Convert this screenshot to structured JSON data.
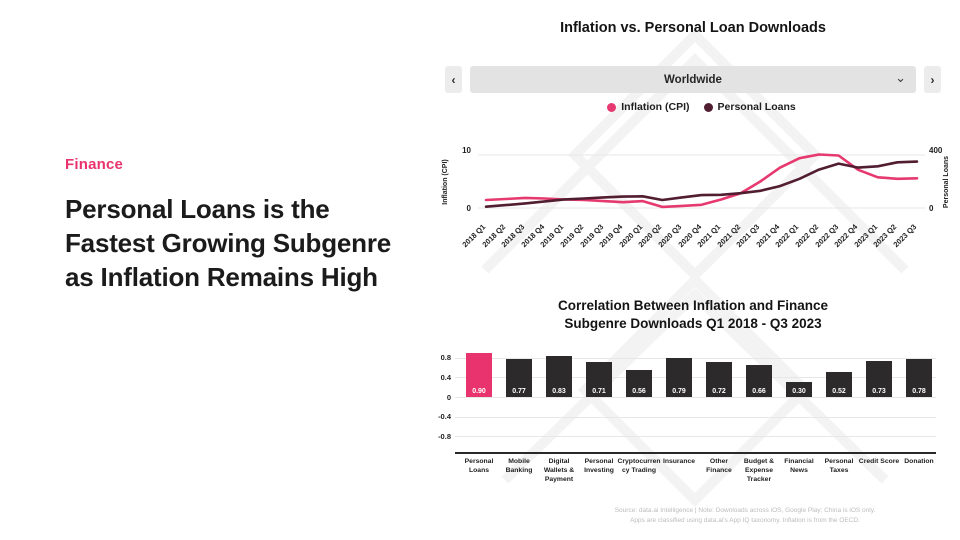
{
  "colors": {
    "accent": "#e9336e",
    "line_pink": "#e5396f",
    "line_dark": "#511d31",
    "bar_dark": "#2d2a2b",
    "selector_bg": "#e3e3e3",
    "grid": "#e7e7e7"
  },
  "left_panel": {
    "eyebrow": "Finance",
    "title": "Personal Loans is the Fastest Growing Subgenre as Inflation Remains High"
  },
  "top_chart": {
    "title": "Inflation vs. Personal Loan Downloads",
    "selector": {
      "value": "Worldwide",
      "prev_icon": "‹",
      "next_icon": "›",
      "dropdown_icon": "⌄"
    }
  },
  "bottom_chart": {
    "title_line1": "Correlation Between Inflation and Finance",
    "title_line2": "Subgenre Downloads Q1 2018 - Q3 2023"
  },
  "source": {
    "line1": "Source: data.ai Intelligence | Note: Downloads across iOS, Google Play; China is iOS only.",
    "line2": "Apps are classified using data.ai's App IQ taxonomy. Inflation is from the OECD."
  },
  "chart_data": [
    {
      "type": "line",
      "title": "Inflation vs. Personal Loan Downloads",
      "region": "Worldwide",
      "x": [
        "2018 Q1",
        "2018 Q2",
        "2018 Q3",
        "2018 Q4",
        "2019 Q1",
        "2019 Q2",
        "2019 Q3",
        "2019 Q4",
        "2020 Q1",
        "2020 Q2",
        "2020 Q3",
        "2020 Q4",
        "2021 Q1",
        "2021 Q2",
        "2021 Q3",
        "2021 Q4",
        "2022 Q1",
        "2022 Q2",
        "2022 Q3",
        "2022 Q4",
        "2023 Q1",
        "2023 Q2",
        "2023 Q3"
      ],
      "series": [
        {
          "name": "Inflation (CPI)",
          "axis": "left",
          "color": "#e5396f",
          "values": [
            1.5,
            1.7,
            1.9,
            1.8,
            1.6,
            1.5,
            1.3,
            1.1,
            1.3,
            0.2,
            0.4,
            0.6,
            1.6,
            2.8,
            5.0,
            7.6,
            9.4,
            10.1,
            9.9,
            7.2,
            5.8,
            5.5,
            5.6
          ]
        },
        {
          "name": "Personal Loans",
          "axis": "right",
          "color": "#511d31",
          "values": [
            10,
            22,
            35,
            50,
            65,
            72,
            80,
            86,
            88,
            60,
            80,
            97,
            100,
            112,
            130,
            165,
            220,
            290,
            335,
            305,
            315,
            345,
            350
          ]
        }
      ],
      "left_axis": {
        "label": "Inflation (CPI)",
        "ticks": [
          0,
          10
        ],
        "range": [
          0,
          10
        ]
      },
      "right_axis": {
        "label": "Personal Loans",
        "ticks": [
          0,
          400
        ],
        "range": [
          0,
          400
        ]
      },
      "legend_position": "top",
      "grid": "horizontal-minimal"
    },
    {
      "type": "bar",
      "title": "Correlation Between Inflation and Finance Subgenre Downloads Q1 2018 - Q3 2023",
      "categories": [
        "Personal Loans",
        "Mobile Banking",
        "Digital Wallets & Payment",
        "Personal Investing",
        "Cryptocurrency Trading",
        "Insurance",
        "Other Finance",
        "Budget & Expense Tracker",
        "Financial News",
        "Personal Taxes",
        "Credit Score",
        "Donation"
      ],
      "values": [
        0.9,
        0.77,
        0.83,
        0.71,
        0.56,
        0.79,
        0.72,
        0.66,
        0.3,
        0.52,
        0.73,
        0.78
      ],
      "highlight_index": 0,
      "bar_colors": {
        "highlight": "#e9336e",
        "default": "#2d2a2b"
      },
      "xlabel": "",
      "ylabel": "",
      "yticks": [
        0.8,
        0.4,
        0,
        -0.4,
        -0.8
      ],
      "ylim": [
        -0.9,
        0.95
      ],
      "grid": "on"
    }
  ]
}
